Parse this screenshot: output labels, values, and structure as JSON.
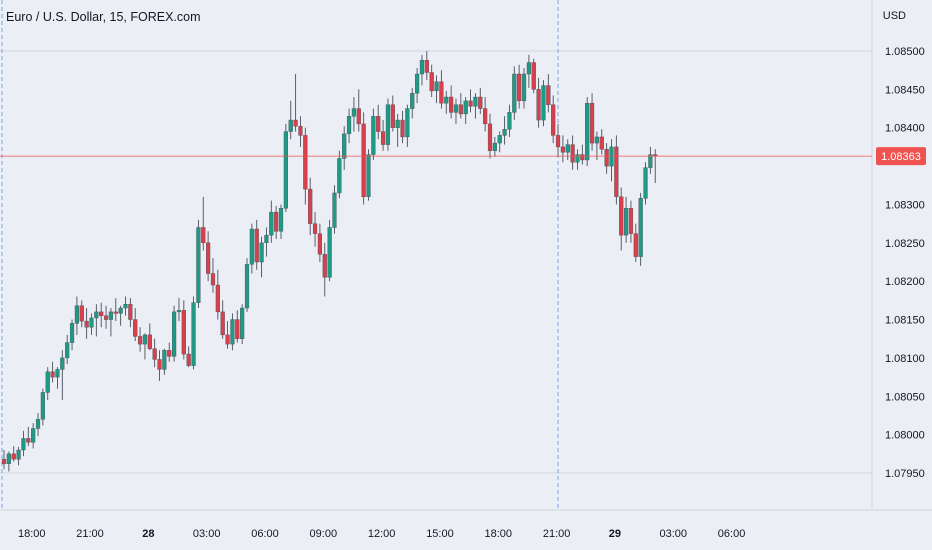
{
  "header": {
    "title": "Euro / U.S. Dollar, 15, FOREX.com",
    "currency": "USD"
  },
  "colors": {
    "up": "#26a69a",
    "down": "#ef5350",
    "up_body": "#1f9a84",
    "down_body": "#d8404b",
    "wick": "#4a4e5a",
    "price_line": "#ef5350",
    "grid": "#c7cbd6",
    "vline": "#5b8fe0"
  },
  "chart_data": {
    "type": "candlestick",
    "y_ticks": [
      "1.08500",
      "1.08450",
      "1.08400",
      "1.08350",
      "1.08300",
      "1.08250",
      "1.08200",
      "1.08150",
      "1.08100",
      "1.08050",
      "1.08000",
      "1.07950"
    ],
    "ylim": [
      1.0793,
      1.0853
    ],
    "x_ticks": [
      {
        "label": "18:00",
        "bold": false,
        "index": 2
      },
      {
        "label": "21:00",
        "bold": false,
        "index": 14
      },
      {
        "label": "28",
        "bold": true,
        "index": 26
      },
      {
        "label": "03:00",
        "bold": false,
        "index": 38
      },
      {
        "label": "06:00",
        "bold": false,
        "index": 50
      },
      {
        "label": "09:00",
        "bold": false,
        "index": 62
      },
      {
        "label": "12:00",
        "bold": false,
        "index": 74
      },
      {
        "label": "15:00",
        "bold": false,
        "index": 86
      },
      {
        "label": "18:00",
        "bold": false,
        "index": 98
      },
      {
        "label": "21:00",
        "bold": false,
        "index": 110
      },
      {
        "label": "29",
        "bold": true,
        "index": 122
      },
      {
        "label": "03:00",
        "bold": false,
        "index": 134
      },
      {
        "label": "06:00",
        "bold": false,
        "index": 146
      }
    ],
    "current_price": "1.08363",
    "candles": [
      [
        1.07968,
        1.0798,
        1.07955,
        1.07962
      ],
      [
        1.07962,
        1.07978,
        1.07952,
        1.07975
      ],
      [
        1.07975,
        1.07985,
        1.07965,
        1.07968
      ],
      [
        1.07968,
        1.07984,
        1.0796,
        1.0798
      ],
      [
        1.0798,
        1.08005,
        1.07972,
        1.07995
      ],
      [
        1.07995,
        1.0801,
        1.07985,
        1.0799
      ],
      [
        1.0799,
        1.08015,
        1.07982,
        1.08008
      ],
      [
        1.08008,
        1.08028,
        1.07998,
        1.0802
      ],
      [
        1.0802,
        1.0806,
        1.08012,
        1.08055
      ],
      [
        1.08055,
        1.08088,
        1.08045,
        1.08082
      ],
      [
        1.08082,
        1.08095,
        1.08068,
        1.08075
      ],
      [
        1.08075,
        1.08088,
        1.0806,
        1.08085
      ],
      [
        1.08085,
        1.0811,
        1.08045,
        1.081
      ],
      [
        1.081,
        1.0813,
        1.08092,
        1.0812
      ],
      [
        1.0812,
        1.0815,
        1.0811,
        1.08145
      ],
      [
        1.08145,
        1.0818,
        1.0813,
        1.08168
      ],
      [
        1.08168,
        1.08175,
        1.0814,
        1.08148
      ],
      [
        1.08148,
        1.08165,
        1.08125,
        1.0814
      ],
      [
        1.0814,
        1.08158,
        1.0813,
        1.08152
      ],
      [
        1.08152,
        1.0817,
        1.08128,
        1.0816
      ],
      [
        1.0816,
        1.08172,
        1.0814,
        1.08155
      ],
      [
        1.08155,
        1.08168,
        1.08138,
        1.0815
      ],
      [
        1.0815,
        1.08165,
        1.08128,
        1.0816
      ],
      [
        1.0816,
        1.08178,
        1.08148,
        1.08158
      ],
      [
        1.08158,
        1.08168,
        1.08142,
        1.08165
      ],
      [
        1.08165,
        1.0818,
        1.08155,
        1.0817
      ],
      [
        1.0817,
        1.08178,
        1.0814,
        1.0815
      ],
      [
        1.0815,
        1.08165,
        1.08122,
        1.08128
      ],
      [
        1.08128,
        1.0814,
        1.08108,
        1.08118
      ],
      [
        1.08118,
        1.08132,
        1.08098,
        1.0813
      ],
      [
        1.0813,
        1.08145,
        1.0811,
        1.08112
      ],
      [
        1.08112,
        1.08125,
        1.08088,
        1.08098
      ],
      [
        1.08098,
        1.0811,
        1.0807,
        1.08085
      ],
      [
        1.08085,
        1.08112,
        1.08078,
        1.0811
      ],
      [
        1.0811,
        1.0812,
        1.08095,
        1.08102
      ],
      [
        1.08102,
        1.08168,
        1.08095,
        1.0816
      ],
      [
        1.0816,
        1.08178,
        1.08148,
        1.08162
      ],
      [
        1.08162,
        1.08175,
        1.08098,
        1.08105
      ],
      [
        1.08105,
        1.08115,
        1.08088,
        1.0809
      ],
      [
        1.0809,
        1.0818,
        1.08085,
        1.08172
      ],
      [
        1.08172,
        1.0828,
        1.08165,
        1.0827
      ],
      [
        1.0827,
        1.0831,
        1.0824,
        1.0825
      ],
      [
        1.0825,
        1.08265,
        1.082,
        1.0821
      ],
      [
        1.0821,
        1.0823,
        1.08185,
        1.08195
      ],
      [
        1.08195,
        1.08215,
        1.0815,
        1.0816
      ],
      [
        1.0816,
        1.08175,
        1.08125,
        1.0813
      ],
      [
        1.0813,
        1.08148,
        1.08112,
        1.08118
      ],
      [
        1.08118,
        1.08158,
        1.0811,
        1.0815
      ],
      [
        1.0815,
        1.08162,
        1.0812,
        1.08125
      ],
      [
        1.08125,
        1.0817,
        1.08118,
        1.08165
      ],
      [
        1.08165,
        1.0823,
        1.0816,
        1.08222
      ],
      [
        1.08222,
        1.08275,
        1.0821,
        1.08268
      ],
      [
        1.08268,
        1.0828,
        1.08215,
        1.08225
      ],
      [
        1.08225,
        1.08258,
        1.08205,
        1.0825
      ],
      [
        1.0825,
        1.0827,
        1.08232,
        1.0826
      ],
      [
        1.0826,
        1.08305,
        1.0825,
        1.0829
      ],
      [
        1.0829,
        1.08298,
        1.08255,
        1.08265
      ],
      [
        1.08265,
        1.083,
        1.08255,
        1.08295
      ],
      [
        1.08295,
        1.08405,
        1.0829,
        1.08395
      ],
      [
        1.08395,
        1.08435,
        1.08385,
        1.0841
      ],
      [
        1.0841,
        1.0847,
        1.08395,
        1.08402
      ],
      [
        1.08402,
        1.08415,
        1.08375,
        1.0839
      ],
      [
        1.0839,
        1.084,
        1.083,
        1.0832
      ],
      [
        1.0832,
        1.08335,
        1.0826,
        1.08275
      ],
      [
        1.08275,
        1.0829,
        1.08245,
        1.08262
      ],
      [
        1.08262,
        1.08275,
        1.08225,
        1.08235
      ],
      [
        1.08235,
        1.0825,
        1.0818,
        1.08205
      ],
      [
        1.08205,
        1.0828,
        1.082,
        1.0827
      ],
      [
        1.0827,
        1.08325,
        1.08262,
        1.08315
      ],
      [
        1.08315,
        1.0837,
        1.08308,
        1.0836
      ],
      [
        1.0836,
        1.08402,
        1.08345,
        1.08392
      ],
      [
        1.08392,
        1.08425,
        1.0838,
        1.08415
      ],
      [
        1.08415,
        1.0844,
        1.08395,
        1.08425
      ],
      [
        1.08425,
        1.0845,
        1.08395,
        1.08405
      ],
      [
        1.08405,
        1.0842,
        1.083,
        1.0831
      ],
      [
        1.0831,
        1.08372,
        1.08305,
        1.08365
      ],
      [
        1.08365,
        1.08425,
        1.08358,
        1.08415
      ],
      [
        1.08415,
        1.0843,
        1.08385,
        1.08395
      ],
      [
        1.08395,
        1.0841,
        1.0837,
        1.08378
      ],
      [
        1.08378,
        1.08438,
        1.0837,
        1.0843
      ],
      [
        1.0843,
        1.08442,
        1.08395,
        1.084
      ],
      [
        1.084,
        1.08418,
        1.08375,
        1.0841
      ],
      [
        1.0841,
        1.08422,
        1.0838,
        1.08388
      ],
      [
        1.08388,
        1.0843,
        1.08375,
        1.08425
      ],
      [
        1.08425,
        1.08452,
        1.08412,
        1.08445
      ],
      [
        1.08445,
        1.08478,
        1.08432,
        1.0847
      ],
      [
        1.0847,
        1.08495,
        1.08455,
        1.08488
      ],
      [
        1.08488,
        1.085,
        1.08462,
        1.08472
      ],
      [
        1.08472,
        1.08482,
        1.0844,
        1.08448
      ],
      [
        1.08448,
        1.08468,
        1.08432,
        1.0846
      ],
      [
        1.0846,
        1.08475,
        1.08425,
        1.08432
      ],
      [
        1.08432,
        1.08448,
        1.08418,
        1.0844
      ],
      [
        1.0844,
        1.08455,
        1.08412,
        1.0842
      ],
      [
        1.0842,
        1.08438,
        1.08405,
        1.0843
      ],
      [
        1.0843,
        1.08445,
        1.08412,
        1.08418
      ],
      [
        1.08418,
        1.0844,
        1.08405,
        1.08435
      ],
      [
        1.08435,
        1.0845,
        1.0842,
        1.08428
      ],
      [
        1.08428,
        1.08445,
        1.08412,
        1.0844
      ],
      [
        1.0844,
        1.08452,
        1.08418,
        1.08425
      ],
      [
        1.08425,
        1.0844,
        1.08395,
        1.08405
      ],
      [
        1.08405,
        1.08418,
        1.0836,
        1.0837
      ],
      [
        1.0837,
        1.08388,
        1.08362,
        1.0838
      ],
      [
        1.0838,
        1.08395,
        1.08368,
        1.0839
      ],
      [
        1.0839,
        1.08415,
        1.08378,
        1.08398
      ],
      [
        1.08398,
        1.0843,
        1.08388,
        1.0842
      ],
      [
        1.0842,
        1.0848,
        1.0841,
        1.0847
      ],
      [
        1.0847,
        1.08482,
        1.08425,
        1.08435
      ],
      [
        1.08435,
        1.08478,
        1.08425,
        1.0847
      ],
      [
        1.0847,
        1.08495,
        1.08452,
        1.08485
      ],
      [
        1.08485,
        1.0849,
        1.08445,
        1.0845
      ],
      [
        1.0845,
        1.08465,
        1.084,
        1.0841
      ],
      [
        1.0841,
        1.08462,
        1.08402,
        1.08455
      ],
      [
        1.08455,
        1.0847,
        1.0842,
        1.0843
      ],
      [
        1.0843,
        1.08442,
        1.0838,
        1.0839
      ],
      [
        1.0839,
        1.08405,
        1.08362,
        1.08375
      ],
      [
        1.08375,
        1.0839,
        1.08355,
        1.08368
      ],
      [
        1.08368,
        1.08385,
        1.08358,
        1.08378
      ],
      [
        1.08378,
        1.0839,
        1.08345,
        1.08355
      ],
      [
        1.08355,
        1.08372,
        1.08345,
        1.08365
      ],
      [
        1.08365,
        1.08378,
        1.08352,
        1.08358
      ],
      [
        1.08358,
        1.0844,
        1.0835,
        1.08432
      ],
      [
        1.08432,
        1.08445,
        1.0837,
        1.0838
      ],
      [
        1.0838,
        1.08395,
        1.08358,
        1.08388
      ],
      [
        1.08388,
        1.08398,
        1.08365,
        1.08372
      ],
      [
        1.08372,
        1.0838,
        1.0834,
        1.0835
      ],
      [
        1.0835,
        1.08385,
        1.0833,
        1.08375
      ],
      [
        1.08375,
        1.0839,
        1.083,
        1.0831
      ],
      [
        1.0831,
        1.08322,
        1.0824,
        1.0826
      ],
      [
        1.0826,
        1.0831,
        1.0825,
        1.08295
      ],
      [
        1.08295,
        1.08305,
        1.0825,
        1.08262
      ],
      [
        1.08262,
        1.08275,
        1.08225,
        1.08232
      ],
      [
        1.08232,
        1.08315,
        1.0822,
        1.08308
      ],
      [
        1.08308,
        1.08355,
        1.083,
        1.08348
      ],
      [
        1.08348,
        1.08375,
        1.0834,
        1.08365
      ],
      [
        1.08365,
        1.08372,
        1.08328,
        1.08363
      ]
    ]
  }
}
